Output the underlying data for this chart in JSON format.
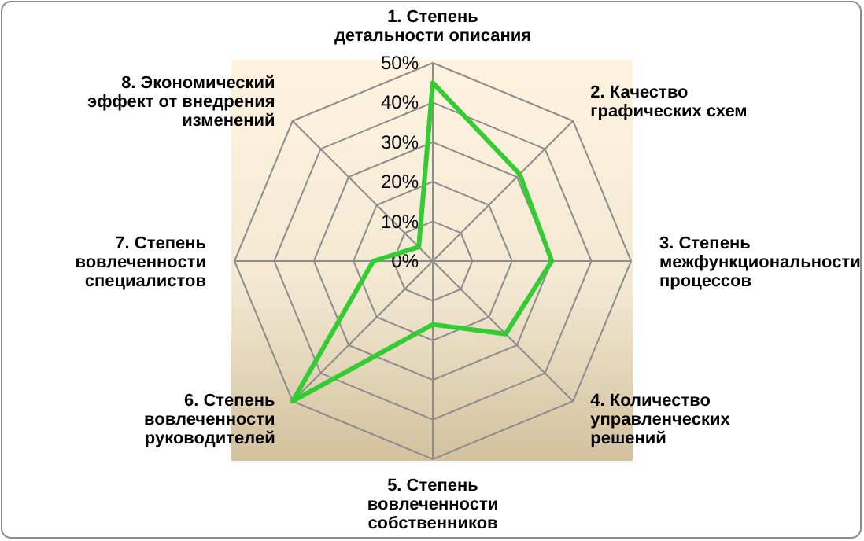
{
  "chart_data": {
    "type": "radar",
    "categories": [
      "1. Степень\nдетальности описания",
      "2. Качество\nграфических схем",
      "3. Степень\nмежфункциональности\nпроцессов",
      "4. Количество\nуправленческих\nрешений",
      "5. Степень\nвовлеченности\nсобственников",
      "6. Степень\nвовлеченности\nруководителей",
      "7. Степень\nвовлеченности\nспециалистов",
      "8. Экономический\nэффект от внедрения\nизменений"
    ],
    "series": [
      {
        "color": "#33cc33",
        "values": [
          45,
          31,
          30,
          26,
          16,
          50,
          15,
          5
        ]
      }
    ],
    "ylim": [
      0,
      50
    ],
    "yticks": [
      {
        "value": 0,
        "label": "0%"
      },
      {
        "value": 10,
        "label": "10%"
      },
      {
        "value": 20,
        "label": "20%"
      },
      {
        "value": 30,
        "label": "30%"
      },
      {
        "value": 40,
        "label": "40%"
      },
      {
        "value": 50,
        "label": "50%"
      }
    ],
    "grid": true
  }
}
